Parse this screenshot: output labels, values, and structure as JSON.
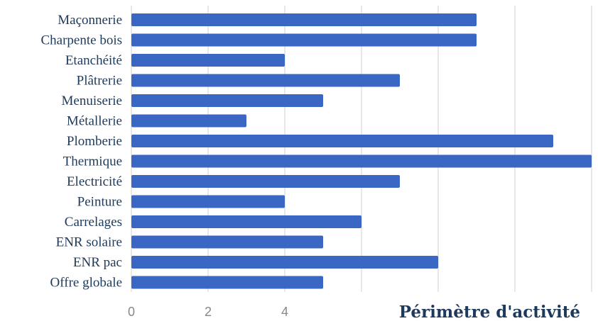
{
  "chart_data": {
    "type": "bar",
    "orientation": "horizontal",
    "categories": [
      "Maçonnerie",
      "Charpente bois",
      "Etanchéité",
      "Plâtrerie",
      "Menuiserie",
      "Métallerie",
      "Plomberie",
      "Thermique",
      "Electricité",
      "Peinture",
      "Carrelages",
      "ENR solaire",
      "ENR pac",
      "Offre globale"
    ],
    "values": [
      9,
      9,
      4,
      7,
      5,
      3,
      11,
      12,
      7,
      4,
      6,
      5,
      8,
      5
    ],
    "xlabel": "Périmètre d'activité",
    "xlim": [
      0,
      12
    ],
    "xticks": [
      0,
      2,
      4
    ],
    "grid": true,
    "bar_color": "#3a66c4",
    "label_color": "#1d3a5c"
  }
}
